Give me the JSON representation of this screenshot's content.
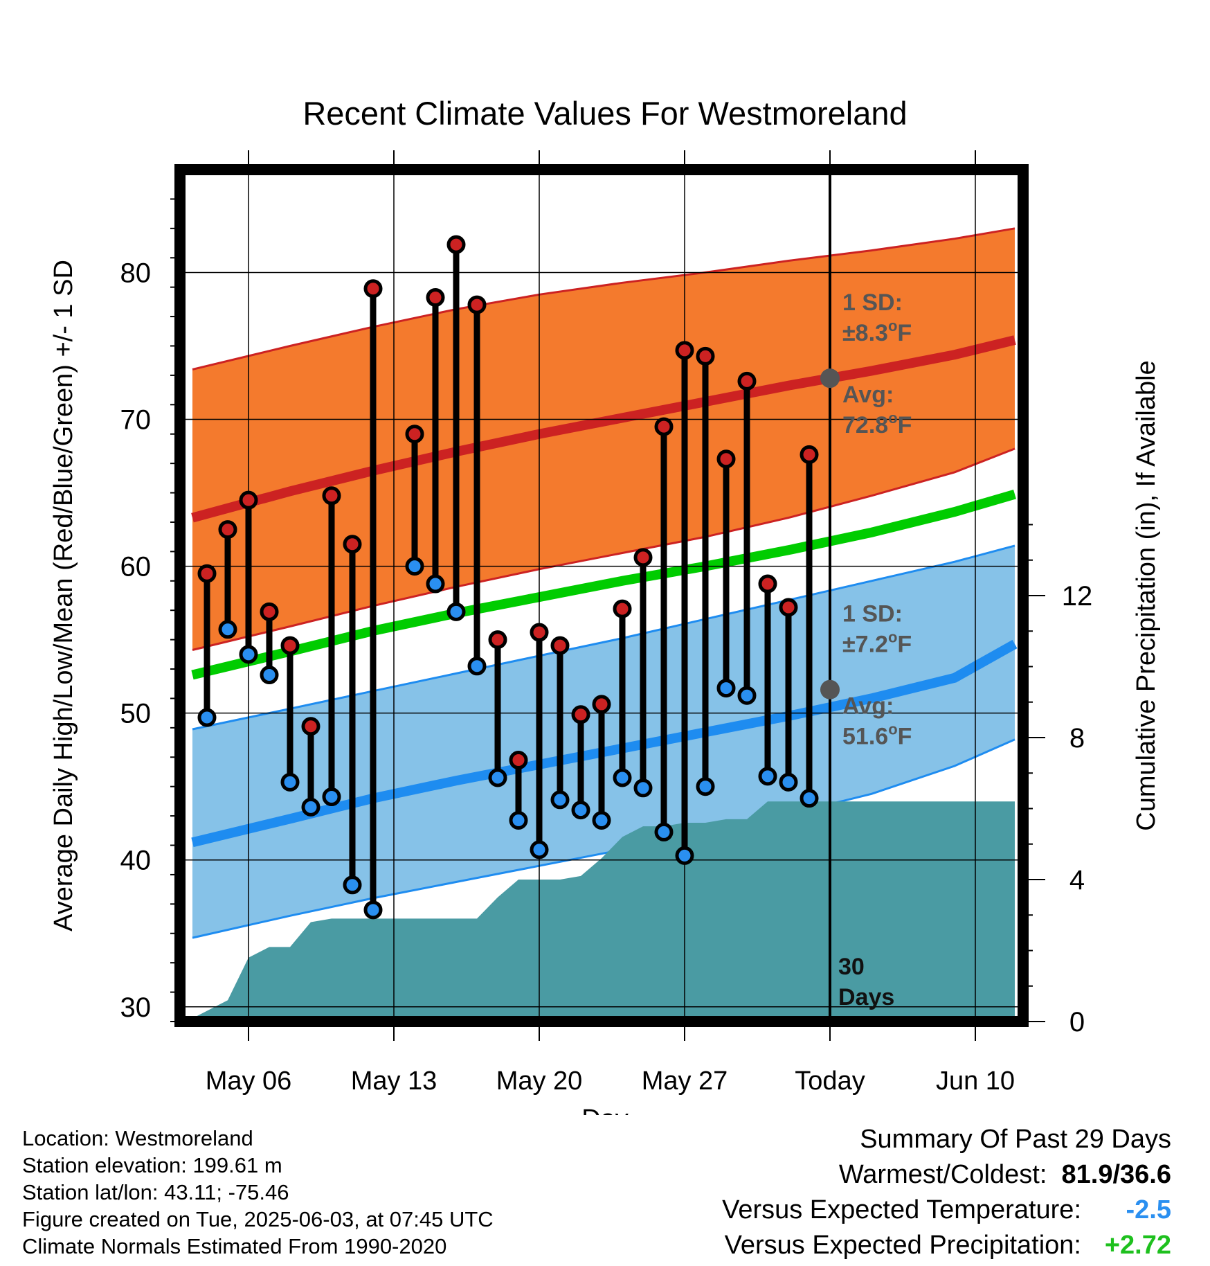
{
  "chart_data": {
    "type": "line",
    "title": "Recent Climate Values For Westmoreland",
    "xlabel": "Day",
    "ylabel": "Average Daily High/Low/Mean (Red/Blue/Green) +/- 1 SD",
    "y2label": "Cumulative Precipitation (in), If Available",
    "ylim": [
      29,
      87
    ],
    "y2lim": [
      0,
      24
    ],
    "yticks": [
      30,
      40,
      50,
      60,
      70,
      80
    ],
    "y2ticks": [
      0,
      4,
      8,
      12
    ],
    "xlim": [
      -3.3,
      37.3
    ],
    "xticks": [
      {
        "day": 0,
        "label": "May 06"
      },
      {
        "day": 7,
        "label": "May 13"
      },
      {
        "day": 14,
        "label": "May 20"
      },
      {
        "day": 21,
        "label": "May 27"
      },
      {
        "day": 28,
        "label": "Today"
      },
      {
        "day": 35,
        "label": "Jun 10"
      }
    ],
    "grid": true,
    "normals": {
      "x": [
        -2.7,
        2,
        6,
        10,
        14,
        18,
        22,
        26,
        30,
        34,
        36.9
      ],
      "high_avg": [
        63.3,
        65.1,
        66.5,
        67.8,
        69.0,
        70.1,
        71.2,
        72.3,
        73.3,
        74.4,
        75.4
      ],
      "high_upper": [
        73.4,
        75.0,
        76.3,
        77.5,
        78.5,
        79.3,
        80.0,
        80.8,
        81.5,
        82.3,
        83.0
      ],
      "high_lower": [
        54.3,
        55.9,
        57.3,
        58.6,
        59.8,
        60.9,
        62.0,
        63.3,
        64.8,
        66.4,
        68.0
      ],
      "mean": [
        52.6,
        54.2,
        55.6,
        56.8,
        57.9,
        59.0,
        60.0,
        61.1,
        62.3,
        63.7,
        64.9
      ],
      "low_avg": [
        41.2,
        42.8,
        44.2,
        45.4,
        46.5,
        47.6,
        48.7,
        49.8,
        51.0,
        52.4,
        54.7
      ],
      "low_upper": [
        48.9,
        50.3,
        51.5,
        52.7,
        53.9,
        55.1,
        56.4,
        57.7,
        59.0,
        60.3,
        61.4
      ],
      "low_lower": [
        34.7,
        36.2,
        37.4,
        38.5,
        39.6,
        40.7,
        41.8,
        43.1,
        44.5,
        46.4,
        48.2
      ]
    },
    "daily": {
      "x": [
        -2,
        -1,
        0,
        1,
        2,
        3,
        4,
        5,
        6,
        8,
        9,
        10,
        11,
        12,
        13,
        14,
        15,
        16,
        17,
        18,
        19,
        20,
        21,
        22,
        23,
        24,
        25,
        26,
        27
      ],
      "high": [
        59.5,
        62.5,
        64.5,
        56.9,
        54.6,
        49.1,
        64.8,
        61.5,
        78.9,
        69.0,
        78.3,
        81.9,
        77.8,
        55.0,
        46.8,
        55.5,
        54.6,
        49.9,
        50.6,
        57.1,
        60.6,
        69.5,
        74.7,
        74.3,
        67.3,
        72.6,
        58.8,
        57.2,
        67.6
      ],
      "low": [
        49.7,
        55.7,
        54.0,
        52.6,
        45.3,
        43.6,
        44.3,
        38.3,
        36.6,
        60.0,
        58.8,
        56.9,
        53.2,
        45.6,
        42.7,
        40.7,
        44.1,
        43.4,
        42.7,
        45.6,
        44.9,
        41.9,
        40.3,
        45.0,
        51.7,
        51.2,
        45.7,
        45.3,
        44.2
      ]
    },
    "precip_cumulative": {
      "x": [
        -3.0,
        -2.0,
        -1.0,
        0.0,
        1.0,
        2.0,
        3.0,
        4.0,
        5.0,
        6.0,
        7.0,
        8.0,
        9.0,
        10.0,
        11.0,
        12.0,
        13.0,
        14.0,
        15.0,
        16.0,
        17.0,
        18.0,
        19.0,
        20.0,
        21.0,
        22.0,
        23.0,
        24.0,
        25.0,
        26.0,
        27.0,
        28.0,
        29.0,
        30.0,
        32.0,
        34.0,
        36.9
      ],
      "y": [
        0.0,
        0.3,
        0.6,
        1.8,
        2.1,
        2.1,
        2.8,
        2.9,
        2.9,
        2.9,
        2.9,
        2.9,
        2.9,
        2.9,
        2.9,
        3.5,
        4.0,
        4.0,
        4.0,
        4.1,
        4.6,
        5.2,
        5.5,
        5.5,
        5.6,
        5.6,
        5.7,
        5.7,
        6.2,
        6.2,
        6.2,
        6.2,
        6.2,
        6.2,
        6.2,
        6.2,
        6.2
      ]
    },
    "today_day": 28,
    "annotations": {
      "high_sd_title": "1 SD:",
      "high_sd_value": "±8.3°F",
      "high_avg_title": "Avg:",
      "high_avg_value": "72.8°F",
      "high_avg_y": 72.8,
      "low_sd_title": "1 SD:",
      "low_sd_value": "±7.2°F",
      "low_avg_title": "Avg:",
      "low_avg_value": "51.6°F",
      "low_avg_y": 51.6,
      "days_num": "30",
      "days_word": "Days"
    },
    "colors": {
      "high_band": "#f47a2d",
      "high_line": "#cc2222",
      "mean_line": "#00cc00",
      "low_band": "#86c2e8",
      "low_line": "#1e8cf0",
      "precip": "#4a9ba3",
      "high_marker": "#cc2222",
      "low_marker": "#2a8ff0",
      "annotation": "#555555"
    }
  },
  "info": {
    "location": "Location: Westmoreland",
    "elevation": "Station elevation: 199.61 m",
    "latlon": "Station lat/lon: 43.11; -75.46",
    "created": "Figure created on Tue, 2025-06-03, at 07:45 UTC",
    "normals": "Climate Normals Estimated From 1990-2020"
  },
  "summary": {
    "title": "Summary Of Past 29 Days",
    "warm_cold_label": "Warmest/Coldest:",
    "warm_cold_value": "81.9/36.6",
    "temp_label": "Versus Expected Temperature:",
    "temp_value": "-2.5",
    "precip_label": "Versus Expected Precipitation:",
    "precip_value": "+2.72"
  }
}
